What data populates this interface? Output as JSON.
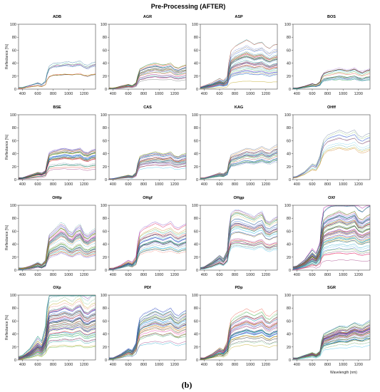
{
  "figure": {
    "title": "Pre-Processing (AFTER)",
    "caption": "(b)",
    "ylabel": "Reflectance [%]",
    "xlabel": "Wavelength (nm)"
  },
  "chart_data": {
    "type": "line",
    "title": "Pre-Processing (AFTER)",
    "xlabel": "Wavelength (nm)",
    "ylabel": "Reflectance [%]",
    "xlim": [
      350,
      1350
    ],
    "ylim": [
      0,
      100
    ],
    "xticks": [
      400,
      600,
      800,
      1000,
      1200
    ],
    "yticks": [
      0,
      20,
      40,
      60,
      80,
      100
    ],
    "grid": false,
    "x": [
      350,
      400,
      500,
      600,
      650,
      700,
      720,
      750,
      800,
      850,
      900,
      950,
      1000,
      1050,
      1100,
      1150,
      1200,
      1250,
      1300,
      1350
    ],
    "panels": [
      {
        "name": "ADB",
        "mean": [
          2,
          2,
          5,
          8,
          6,
          10,
          20,
          28,
          31,
          32,
          32,
          33,
          33,
          32,
          33,
          34,
          30,
          29,
          32,
          33
        ],
        "spread": 2,
        "n": 10
      },
      {
        "name": "AGR",
        "mean": [
          1,
          1,
          3,
          5,
          4,
          7,
          14,
          22,
          24,
          26,
          27,
          28,
          27,
          26,
          27,
          28,
          24,
          23,
          25,
          26
        ],
        "spread": 4,
        "n": 24
      },
      {
        "name": "ASP",
        "mean": [
          2,
          3,
          6,
          10,
          8,
          12,
          25,
          36,
          40,
          42,
          44,
          46,
          44,
          42,
          43,
          44,
          40,
          38,
          41,
          42
        ],
        "spread": 16,
        "n": 40
      },
      {
        "name": "BOS",
        "mean": [
          1,
          1,
          3,
          6,
          5,
          8,
          14,
          18,
          20,
          21,
          22,
          23,
          22,
          21,
          22,
          23,
          20,
          19,
          21,
          22
        ],
        "spread": 3,
        "n": 18
      },
      {
        "name": "BSE",
        "mean": [
          2,
          2,
          5,
          8,
          7,
          10,
          20,
          30,
          32,
          33,
          34,
          35,
          34,
          33,
          34,
          35,
          31,
          30,
          33,
          34
        ],
        "spread": 7,
        "n": 30
      },
      {
        "name": "CAS",
        "mean": [
          1,
          1,
          3,
          5,
          4,
          8,
          18,
          26,
          28,
          29,
          30,
          31,
          30,
          29,
          30,
          31,
          27,
          26,
          28,
          29
        ],
        "spread": 6,
        "n": 28
      },
      {
        "name": "KAG",
        "mean": [
          2,
          2,
          5,
          8,
          7,
          11,
          22,
          30,
          32,
          34,
          36,
          38,
          37,
          36,
          38,
          40,
          37,
          36,
          40,
          42
        ],
        "spread": 4,
        "n": 24
      },
      {
        "name": "OHff",
        "mean": [
          3,
          4,
          10,
          20,
          18,
          30,
          40,
          50,
          56,
          58,
          60,
          62,
          60,
          58,
          60,
          62,
          55,
          53,
          56,
          58
        ],
        "spread": 10,
        "n": 10
      },
      {
        "name": "OHfp",
        "mean": [
          2,
          2,
          4,
          8,
          6,
          10,
          22,
          36,
          40,
          44,
          48,
          46,
          40,
          38,
          44,
          46,
          38,
          36,
          40,
          42
        ],
        "spread": 8,
        "n": 40
      },
      {
        "name": "OHgf",
        "mean": [
          2,
          2,
          5,
          10,
          8,
          14,
          28,
          40,
          44,
          46,
          48,
          50,
          48,
          46,
          48,
          50,
          45,
          43,
          46,
          48
        ],
        "spread": 9,
        "n": 30
      },
      {
        "name": "OHgp",
        "mean": [
          3,
          4,
          10,
          18,
          14,
          24,
          50,
          68,
          72,
          72,
          70,
          68,
          66,
          64,
          68,
          70,
          60,
          58,
          62,
          64
        ],
        "spread": 10,
        "n": 34
      },
      {
        "name": "OXf",
        "mean": [
          3,
          4,
          10,
          20,
          16,
          26,
          45,
          58,
          62,
          64,
          66,
          68,
          66,
          64,
          66,
          68,
          60,
          58,
          62,
          64
        ],
        "spread": 20,
        "n": 60
      },
      {
        "name": "OXp",
        "mean": [
          3,
          4,
          10,
          20,
          16,
          28,
          45,
          58,
          60,
          60,
          62,
          64,
          62,
          60,
          64,
          66,
          58,
          56,
          60,
          62
        ],
        "spread": 24,
        "n": 60
      },
      {
        "name": "PDf",
        "mean": [
          2,
          2,
          6,
          12,
          10,
          18,
          32,
          44,
          48,
          50,
          52,
          54,
          52,
          50,
          52,
          54,
          48,
          46,
          50,
          52
        ],
        "spread": 10,
        "n": 36
      },
      {
        "name": "PDp",
        "mean": [
          2,
          2,
          6,
          12,
          10,
          18,
          30,
          40,
          44,
          46,
          48,
          50,
          48,
          46,
          48,
          50,
          44,
          42,
          46,
          48
        ],
        "spread": 10,
        "n": 40
      },
      {
        "name": "SGR",
        "mean": [
          2,
          2,
          5,
          8,
          6,
          10,
          20,
          28,
          30,
          32,
          34,
          36,
          36,
          35,
          38,
          40,
          38,
          37,
          40,
          42
        ],
        "spread": 8,
        "n": 50
      }
    ],
    "palette": [
      "#1f3fbf",
      "#000000",
      "#e0199a",
      "#14a0c8",
      "#2fa84f",
      "#e8402a",
      "#7c3fc4",
      "#0b8f8f",
      "#b59b00",
      "#5b6f8f",
      "#3cc0e8",
      "#9a2f7a",
      "#2b5fd9",
      "#60b030",
      "#d07a1a",
      "#6a6a6a"
    ]
  }
}
